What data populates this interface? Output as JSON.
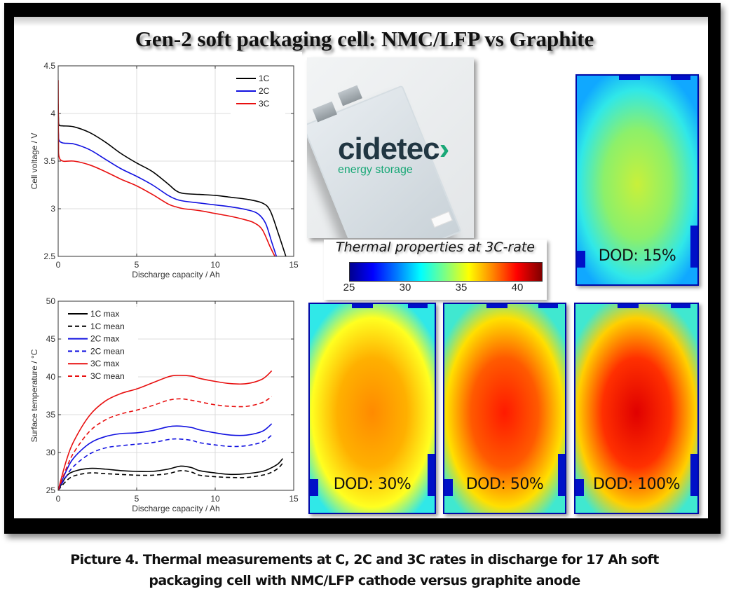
{
  "slide": {
    "title": "Gen-2 soft packaging cell: NMC/LFP vs Graphite",
    "caption_line1": "Picture 4. Thermal measurements at C, 2C and 3C rates in discharge for 17 Ah soft",
    "caption_line2": "packaging cell with NMC/LFP cathode versus graphite anode"
  },
  "photo": {
    "logo_text": "cidetec",
    "logo_arrow": "›",
    "logo_subtitle": "energy storage"
  },
  "colorbar": {
    "title": "Thermal properties at 3C-rate",
    "ticks": [
      "25",
      "30",
      "35",
      "40"
    ],
    "range": [
      25,
      42
    ],
    "colormap": "jet"
  },
  "thermal_images": [
    {
      "label": "DOD: 15%",
      "dod_percent": 15
    },
    {
      "label": "DOD: 30%",
      "dod_percent": 30
    },
    {
      "label": "DOD: 50%",
      "dod_percent": 50
    },
    {
      "label": "DOD: 100%",
      "dod_percent": 100
    }
  ],
  "colors": {
    "1C": "#000000",
    "2C": "#1010e0",
    "3C": "#e81010"
  },
  "chart_data": [
    {
      "type": "line",
      "title": "",
      "xlabel": "Discharge capacity / Ah",
      "ylabel": "Cell voltage / V",
      "xlim": [
        0,
        15
      ],
      "ylim": [
        2.5,
        4.5
      ],
      "xticks": [
        0,
        5,
        10,
        15
      ],
      "yticks": [
        2.5,
        3,
        3.5,
        4,
        4.5
      ],
      "xtick_labels": [
        "0",
        "5",
        "10",
        "15"
      ],
      "ytick_labels": [
        "2.5",
        "3",
        "3.5",
        "4",
        "4.5"
      ],
      "grid": true,
      "legend": "top-right",
      "series": [
        {
          "name": "1C",
          "color": "#000000",
          "dash": false,
          "x": [
            0,
            0.02,
            0.05,
            0.3,
            1,
            2,
            3,
            4,
            5,
            6,
            7,
            7.5,
            8,
            9,
            10,
            11,
            12,
            13,
            13.5,
            14,
            14.5
          ],
          "y": [
            4.1,
            3.95,
            3.88,
            3.87,
            3.86,
            3.8,
            3.7,
            3.58,
            3.48,
            3.39,
            3.26,
            3.19,
            3.16,
            3.15,
            3.14,
            3.12,
            3.1,
            3.06,
            2.98,
            2.75,
            2.5
          ]
        },
        {
          "name": "2C",
          "color": "#1010e0",
          "dash": false,
          "x": [
            0,
            0.02,
            0.05,
            0.3,
            1,
            2,
            3,
            4,
            5,
            6,
            7,
            7.5,
            8,
            9,
            10,
            11,
            12,
            12.7,
            13.2,
            13.6,
            13.9
          ],
          "y": [
            3.85,
            3.78,
            3.72,
            3.69,
            3.68,
            3.62,
            3.52,
            3.42,
            3.34,
            3.25,
            3.14,
            3.1,
            3.08,
            3.06,
            3.04,
            3.02,
            2.99,
            2.95,
            2.85,
            2.65,
            2.5
          ]
        },
        {
          "name": "3C",
          "color": "#e81010",
          "dash": false,
          "x": [
            0,
            0.02,
            0.05,
            0.3,
            1,
            2,
            3,
            4,
            5,
            6,
            7,
            7.5,
            8,
            9,
            10,
            11,
            12,
            12.5,
            13,
            13.5,
            13.8
          ],
          "y": [
            4.35,
            3.7,
            3.55,
            3.5,
            3.5,
            3.46,
            3.39,
            3.31,
            3.24,
            3.15,
            3.05,
            3.02,
            3.0,
            2.98,
            2.95,
            2.92,
            2.88,
            2.85,
            2.78,
            2.6,
            2.5
          ]
        }
      ]
    },
    {
      "type": "line",
      "title": "",
      "xlabel": "Discharge capacity / Ah",
      "ylabel": "Surface temperature / °C",
      "xlim": [
        0,
        15
      ],
      "ylim": [
        25,
        50
      ],
      "xticks": [
        0,
        5,
        10,
        15
      ],
      "yticks": [
        25,
        30,
        35,
        40,
        45,
        50
      ],
      "xtick_labels": [
        "0",
        "5",
        "10",
        "15"
      ],
      "ytick_labels": [
        "25",
        "30",
        "35",
        "40",
        "45",
        "50"
      ],
      "grid": true,
      "legend": "top-left",
      "series": [
        {
          "name": "1C max",
          "color": "#000000",
          "dash": false,
          "x": [
            0,
            0.5,
            1,
            2,
            3,
            4,
            5,
            6,
            7,
            7.8,
            8.5,
            9,
            10,
            11,
            12,
            13,
            13.5,
            14,
            14.3
          ],
          "y": [
            25,
            26.8,
            27.5,
            27.9,
            27.8,
            27.6,
            27.5,
            27.5,
            27.8,
            28.2,
            28.0,
            27.6,
            27.3,
            27.1,
            27.2,
            27.5,
            27.9,
            28.5,
            29.2
          ]
        },
        {
          "name": "1C mean",
          "color": "#000000",
          "dash": true,
          "x": [
            0,
            0.5,
            1,
            2,
            3,
            4,
            5,
            6,
            7,
            7.8,
            8.5,
            9,
            10,
            11,
            12,
            13,
            13.5,
            14,
            14.3
          ],
          "y": [
            25,
            26.2,
            26.9,
            27.3,
            27.2,
            27.1,
            27.0,
            27.0,
            27.2,
            27.6,
            27.4,
            27.0,
            26.8,
            26.7,
            26.7,
            27.0,
            27.3,
            27.9,
            28.6
          ]
        },
        {
          "name": "2C max",
          "color": "#1010e0",
          "dash": false,
          "x": [
            0,
            0.5,
            1,
            2,
            3,
            4,
            5,
            6,
            7,
            7.6,
            8.5,
            9,
            10,
            11,
            12,
            13,
            13.6
          ],
          "y": [
            25,
            27.5,
            29.3,
            31.2,
            32.1,
            32.5,
            32.6,
            32.9,
            33.4,
            33.5,
            33.3,
            33.0,
            32.6,
            32.3,
            32.3,
            32.8,
            33.8
          ]
        },
        {
          "name": "2C mean",
          "color": "#1010e0",
          "dash": true,
          "x": [
            0,
            0.5,
            1,
            2,
            3,
            4,
            5,
            6,
            7,
            7.6,
            8.5,
            9,
            10,
            11,
            12,
            13,
            13.6
          ],
          "y": [
            25,
            26.8,
            28.2,
            29.8,
            30.6,
            30.9,
            31.1,
            31.3,
            31.7,
            31.8,
            31.6,
            31.3,
            31.0,
            30.8,
            30.9,
            31.4,
            32.3
          ]
        },
        {
          "name": "3C max",
          "color": "#e81010",
          "dash": false,
          "x": [
            0,
            0.5,
            1,
            2,
            3,
            4,
            5,
            6,
            7,
            7.6,
            8.5,
            9,
            10,
            11,
            12,
            13,
            13.6
          ],
          "y": [
            25,
            28.8,
            31.5,
            34.9,
            36.8,
            37.8,
            38.4,
            39.2,
            40.0,
            40.2,
            40.1,
            39.8,
            39.4,
            39.1,
            39.1,
            39.7,
            40.8
          ]
        },
        {
          "name": "3C mean",
          "color": "#e81010",
          "dash": true,
          "x": [
            0,
            0.5,
            1,
            2,
            3,
            4,
            5,
            6,
            7,
            7.8,
            8.5,
            9,
            10,
            11,
            12,
            13,
            13.6
          ],
          "y": [
            25,
            27.8,
            30.0,
            32.8,
            34.3,
            35.1,
            35.6,
            36.2,
            36.9,
            37.1,
            36.9,
            36.7,
            36.3,
            36.1,
            36.1,
            36.6,
            37.4
          ]
        }
      ]
    }
  ]
}
